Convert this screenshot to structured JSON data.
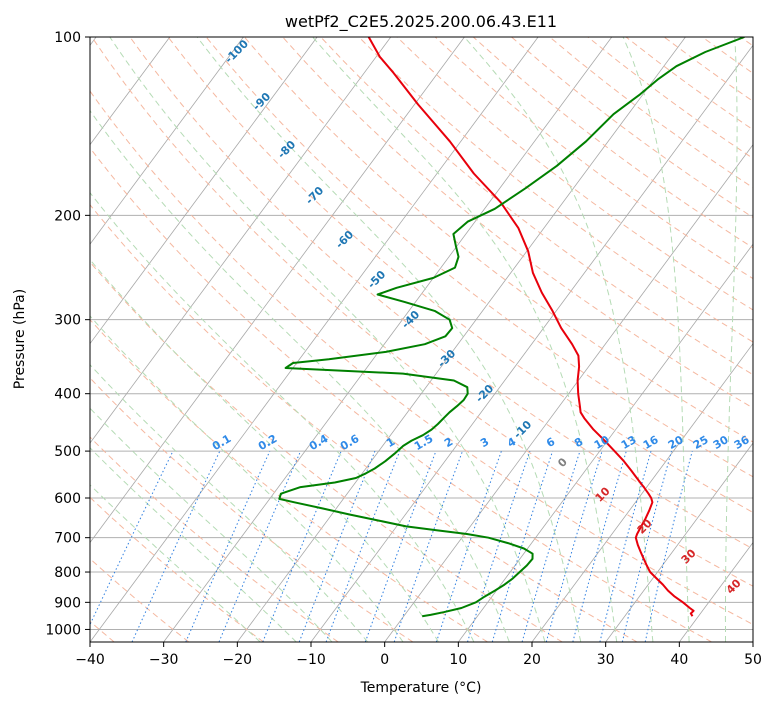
{
  "chart_data": {
    "type": "line",
    "title": "wetPf2_C2E5.2025.200.06.43.E11",
    "xlabel": "Temperature (°C)",
    "ylabel": "Pressure (hPa)",
    "xlim": [
      -40,
      50
    ],
    "ylim": [
      1050,
      100
    ],
    "y_scale": "log",
    "x_ticks": [
      "−40",
      "−30",
      "−20",
      "−10",
      "0",
      "10",
      "20",
      "30",
      "40",
      "50"
    ],
    "x_tick_values": [
      -40,
      -30,
      -20,
      -10,
      0,
      10,
      20,
      30,
      40,
      50
    ],
    "y_ticks": [
      "100",
      "200",
      "300",
      "400",
      "500",
      "600",
      "700",
      "800",
      "900",
      "1000"
    ],
    "y_tick_values": [
      100,
      200,
      300,
      400,
      500,
      600,
      700,
      800,
      900,
      1000
    ],
    "grid": true,
    "series": [
      {
        "kind": "temperature",
        "color": "#e8000b",
        "points": [
          [
            950,
            39.2
          ],
          [
            940,
            38.7
          ],
          [
            930,
            38.8
          ],
          [
            920,
            38.0
          ],
          [
            900,
            36.5
          ],
          [
            880,
            34.8
          ],
          [
            860,
            33.3
          ],
          [
            840,
            32.0
          ],
          [
            820,
            30.5
          ],
          [
            800,
            29.0
          ],
          [
            780,
            27.9
          ],
          [
            760,
            26.8
          ],
          [
            740,
            25.7
          ],
          [
            720,
            24.6
          ],
          [
            700,
            23.6
          ],
          [
            690,
            23.4
          ],
          [
            670,
            23.2
          ],
          [
            650,
            23.0
          ],
          [
            630,
            22.7
          ],
          [
            610,
            22.3
          ],
          [
            600,
            21.7
          ],
          [
            590,
            20.9
          ],
          [
            575,
            19.6
          ],
          [
            560,
            18.2
          ],
          [
            540,
            16.3
          ],
          [
            520,
            14.3
          ],
          [
            500,
            12.0
          ],
          [
            480,
            9.6
          ],
          [
            460,
            7.0
          ],
          [
            440,
            4.6
          ],
          [
            430,
            3.5
          ],
          [
            420,
            2.8
          ],
          [
            400,
            1.3
          ],
          [
            380,
            -0.1
          ],
          [
            360,
            -1.3
          ],
          [
            345,
            -2.5
          ],
          [
            330,
            -4.5
          ],
          [
            310,
            -7.6
          ],
          [
            290,
            -10.5
          ],
          [
            270,
            -13.8
          ],
          [
            250,
            -17.0
          ],
          [
            230,
            -19.8
          ],
          [
            210,
            -23.5
          ],
          [
            190,
            -28.5
          ],
          [
            170,
            -35.0
          ],
          [
            150,
            -41.5
          ],
          [
            130,
            -49.5
          ],
          [
            115,
            -56.0
          ],
          [
            108,
            -59.5
          ],
          [
            100,
            -63.0
          ]
        ]
      },
      {
        "kind": "dewpoint",
        "color": "#008000",
        "points": [
          [
            950,
            2.5
          ],
          [
            945,
            3.5
          ],
          [
            935,
            5.0
          ],
          [
            920,
            7.0
          ],
          [
            900,
            8.4
          ],
          [
            880,
            9.0
          ],
          [
            860,
            9.8
          ],
          [
            840,
            10.5
          ],
          [
            820,
            11.0
          ],
          [
            800,
            11.3
          ],
          [
            780,
            11.6
          ],
          [
            760,
            11.7
          ],
          [
            745,
            11.2
          ],
          [
            730,
            9.5
          ],
          [
            715,
            6.8
          ],
          [
            700,
            3.6
          ],
          [
            690,
            0.3
          ],
          [
            680,
            -4.2
          ],
          [
            670,
            -8.7
          ],
          [
            655,
            -13.0
          ],
          [
            640,
            -17.5
          ],
          [
            625,
            -21.8
          ],
          [
            610,
            -26.3
          ],
          [
            602,
            -28.7
          ],
          [
            590,
            -29.0
          ],
          [
            575,
            -27.0
          ],
          [
            565,
            -22.8
          ],
          [
            555,
            -20.4
          ],
          [
            545,
            -19.5
          ],
          [
            535,
            -18.8
          ],
          [
            520,
            -18.1
          ],
          [
            505,
            -17.6
          ],
          [
            490,
            -17.2
          ],
          [
            480,
            -16.6
          ],
          [
            470,
            -15.6
          ],
          [
            460,
            -15.0
          ],
          [
            450,
            -14.7
          ],
          [
            440,
            -14.5
          ],
          [
            430,
            -14.3
          ],
          [
            420,
            -13.9
          ],
          [
            410,
            -13.6
          ],
          [
            400,
            -13.7
          ],
          [
            390,
            -14.4
          ],
          [
            380,
            -16.9
          ],
          [
            370,
            -24.5
          ],
          [
            362,
            -41.0
          ],
          [
            355,
            -40.5
          ],
          [
            350,
            -36.0
          ],
          [
            340,
            -29.0
          ],
          [
            330,
            -24.5
          ],
          [
            320,
            -22.5
          ],
          [
            310,
            -22.4
          ],
          [
            300,
            -23.6
          ],
          [
            290,
            -26.5
          ],
          [
            280,
            -31.5
          ],
          [
            272,
            -35.9
          ],
          [
            265,
            -34.0
          ],
          [
            255,
            -30.0
          ],
          [
            245,
            -28.1
          ],
          [
            235,
            -28.7
          ],
          [
            225,
            -30.2
          ],
          [
            215,
            -31.7
          ],
          [
            205,
            -31.0
          ],
          [
            195,
            -28.6
          ],
          [
            180,
            -26.5
          ],
          [
            165,
            -24.5
          ],
          [
            150,
            -23.0
          ],
          [
            135,
            -22.0
          ],
          [
            125,
            -20.4
          ],
          [
            118,
            -19.5
          ],
          [
            112,
            -18.3
          ],
          [
            106,
            -15.8
          ],
          [
            100,
            -12.0
          ]
        ]
      }
    ],
    "dry_adiabat_labels": [
      "-100",
      "-90",
      "-80",
      "-70",
      "-60",
      "-50",
      "-40",
      "-30",
      "-20",
      "-10",
      "0",
      "10",
      "20",
      "30",
      "40"
    ],
    "mixing_ratio_labels": [
      "0.1",
      "0.2",
      "0.4",
      "0.6",
      "1",
      "1.5",
      "2",
      "3",
      "4",
      "6",
      "8",
      "10",
      "13",
      "16",
      "20",
      "25",
      "30",
      "36"
    ]
  }
}
